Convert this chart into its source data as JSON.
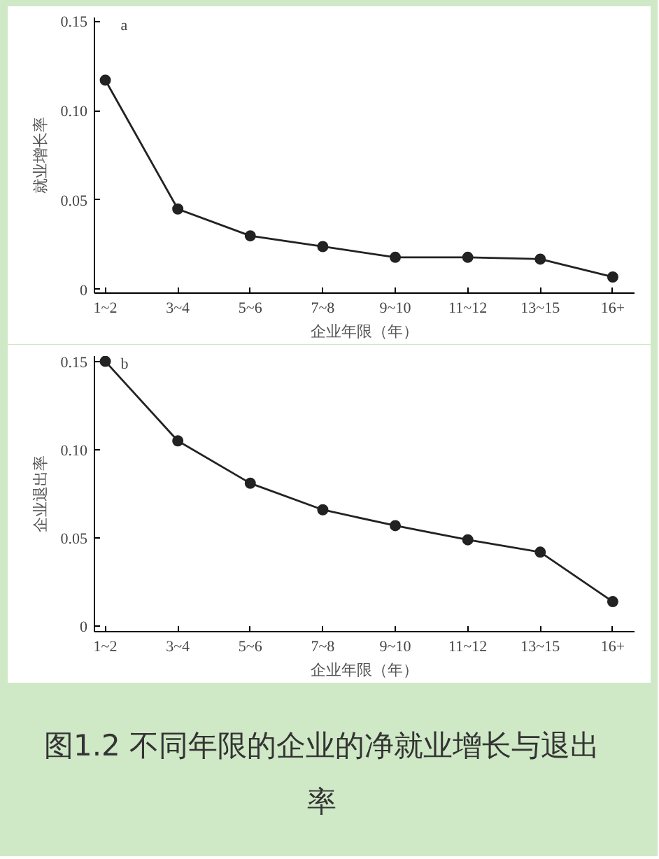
{
  "chart_data": [
    {
      "type": "line",
      "title": "a",
      "xlabel": "企业年限（年）",
      "ylabel": "就业增长率",
      "categories": [
        "1~2",
        "3~4",
        "5~6",
        "7~8",
        "9~10",
        "11~12",
        "13~15",
        "16+"
      ],
      "series": [
        {
          "color": "#222222",
          "values": [
            0.117,
            0.045,
            0.03,
            0.024,
            0.018,
            0.018,
            0.017,
            0.007
          ]
        }
      ],
      "ylim": [
        -0.002,
        0.152
      ],
      "yticks": [
        0,
        0.05,
        {
          "value": 0.1,
          "label": "0.10"
        },
        0.15
      ],
      "marker": "circle",
      "line_style": "solid",
      "grid": false
    },
    {
      "type": "line",
      "title": "b",
      "xlabel": "企业年限（年）",
      "ylabel": "企业退出率",
      "categories": [
        "1~2",
        "3~4",
        "5~6",
        "7~8",
        "9~10",
        "11~12",
        "13~15",
        "16+"
      ],
      "series": [
        {
          "color": "#222222",
          "values": [
            0.15,
            0.105,
            0.081,
            0.066,
            0.057,
            0.049,
            0.042,
            0.014
          ]
        }
      ],
      "ylim": [
        -0.003,
        0.153
      ],
      "yticks": [
        0,
        0.05,
        {
          "value": 0.1,
          "label": "0.10"
        },
        0.15
      ],
      "marker": "circle",
      "line_style": "solid",
      "grid": false,
      "annotations": [
        "图1.2 不同年限的企业的净就业增长与退出率"
      ]
    }
  ]
}
